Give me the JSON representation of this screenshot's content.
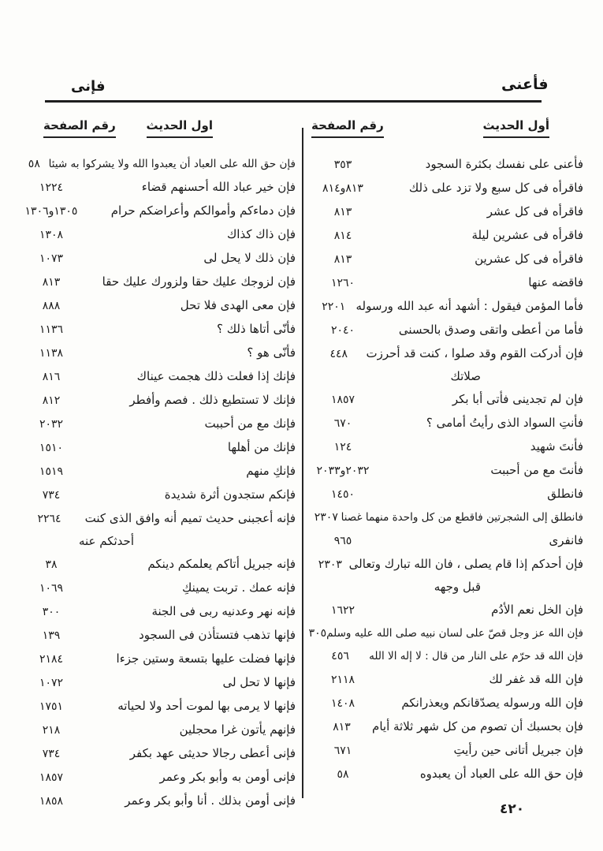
{
  "page": {
    "running_head_right": "فأعنى",
    "running_head_left": "فإنى",
    "page_number": "٤٢٠"
  },
  "columns": {
    "right": {
      "header_hadith": "أول الحديث",
      "header_page": "رقم الصفحة",
      "entries": [
        {
          "text": "فأعنى على نفسك بكثرة السجود",
          "page": "٣٥٣"
        },
        {
          "text": "فاقرأه فى كل سبع ولا تزد على ذلك",
          "page": "٨١٣و٨١٤"
        },
        {
          "text": "فاقرأه فى كل عشر",
          "page": "٨١٣"
        },
        {
          "text": "فاقرأه فى عشرين ليلة",
          "page": "٨١٤"
        },
        {
          "text": "فاقرأه فى كل عشرين",
          "page": "٨١٣"
        },
        {
          "text": "فاقضه عنها",
          "page": "١٢٦٠"
        },
        {
          "text": "فأما المؤمن فيقول : أشهد أنه عبد الله ورسوله",
          "page": "٢٢٠١"
        },
        {
          "text": "فأما من أعطى واتقى وصدق بالحسنى",
          "page": "٢٠٤٠"
        },
        {
          "text": "فإن أدركت القوم وقد صلوا ، كنت قد أحرزت",
          "line2": "صلاتك",
          "page": "٤٤٨"
        },
        {
          "text": "فإن لم تجدينى فأتى أبا بكر",
          "page": "١٨٥٧"
        },
        {
          "text": "فأنتِ السواد الذى رأيتُ أمامى ؟",
          "page": "٦٧٠"
        },
        {
          "text": "فأنتَ شهيد",
          "page": "١٢٤"
        },
        {
          "text": "فأنتَ مع من أحببت",
          "page": "٢٠٣٢و٢٠٣٣"
        },
        {
          "text": "فانطلق",
          "page": "١٤٥٠"
        },
        {
          "text": "فانطلق إلى الشجرتين فاقطع من كل واحدة منهما غصنا",
          "page": "٢٣٠٧",
          "small": true
        },
        {
          "text": "فانفرى",
          "page": "٩٦٥"
        },
        {
          "text": "فإن أحدكم إذا قام يصلى ، فان الله تبارك وتعالى",
          "line2": "قبل وجهه",
          "page": "٢٣٠٣"
        },
        {
          "text": "فإن الخل نعم الأدُم",
          "page": "١٦٢٢"
        },
        {
          "text": "فإن الله عز وجل قصّ على لسان نبيه صلى الله عليه وسلم",
          "page": "٣٠٥",
          "small": true
        },
        {
          "text": "فإن الله قد حرّم على النار من قال : لا إله الا الله",
          "page": "٤٥٦",
          "small": true
        },
        {
          "text": "فإن الله قد غفر لك",
          "page": "٢١١٨"
        },
        {
          "text": "فإن الله ورسوله يصدّقانكم ويعذرانكم",
          "page": "١٤٠٨"
        },
        {
          "text": "فإن بحسبك أن تصوم من كل شهر ثلاثة أيام",
          "page": "٨١٣"
        },
        {
          "text": "فإن جبريل أتانى حين رأيتِ",
          "page": "٦٧١"
        },
        {
          "text": "فإن حق الله على العباد أن يعبدوه",
          "page": "٥٨"
        }
      ]
    },
    "left": {
      "header_hadith": "اول الحديث",
      "header_page": "رقم الصفحة",
      "entries": [
        {
          "text": "فإن حق الله على العباد أن يعبدوا الله ولا يشركوا به شيئا",
          "page": "٥٨",
          "small": true
        },
        {
          "text": "فإن خير عباد الله أحسنهم قضاء",
          "page": "١٢٢٤"
        },
        {
          "text": "فإن دماءكم وأموالكم وأعراضكم حرام",
          "page": "١٣٠٥و١٣٠٦"
        },
        {
          "text": "فإن ذاك كذاك",
          "page": "١٣٠٨"
        },
        {
          "text": "فإن ذلك لا يحل لى",
          "page": "١٠٧٣"
        },
        {
          "text": "فإن لزوجك عليك حقا ولزورك عليك حقا",
          "page": "٨١٣"
        },
        {
          "text": "فإن معى الهدى فلا تحل",
          "page": "٨٨٨"
        },
        {
          "text": "فأنّى أتاها ذلك ؟",
          "page": "١١٣٦"
        },
        {
          "text": "فأنّى هو ؟",
          "page": "١١٣٨"
        },
        {
          "text": "فإنك إذا فعلت ذلك هجمت عيناك",
          "page": "٨١٦"
        },
        {
          "text": "فإنك لا تستطيع ذلك . فصم وأفطر",
          "page": "٨١٢"
        },
        {
          "text": "فإنك مع من أحببت",
          "page": "٢٠٣٢"
        },
        {
          "text": "فإنك من أهلها",
          "page": "١٥١٠"
        },
        {
          "text": "فإنكِ منهم",
          "page": "١٥١٩"
        },
        {
          "text": "فإنكم ستجدون أثرة شديدة",
          "page": "٧٣٤"
        },
        {
          "text": "فإنه أعجبنى حديث تميم أنه وافق الذى كنت",
          "line2": "أحدثكم عنه",
          "page": "٢٢٦٤"
        },
        {
          "text": "فإنه جبريل أتاكم يعلمكم دينكم",
          "page": "٣٨"
        },
        {
          "text": "فإنه عمك . تربت يمينكِ",
          "page": "١٠٦٩"
        },
        {
          "text": "فإنه نهر وعدنيه ربى فى الجنة",
          "page": "٣٠٠"
        },
        {
          "text": "فإنها تذهب فتستأذن فى السجود",
          "page": "١٣٩"
        },
        {
          "text": "فإنها فضلت عليها بتسعة وستين جزءا",
          "page": "٢١٨٤"
        },
        {
          "text": "فإنها لا تحل لى",
          "page": "١٠٧٢"
        },
        {
          "text": "فإنها لا يرمى بها لموت أحد ولا لحياته",
          "page": "١٧٥١"
        },
        {
          "text": "فإنهم يأتون غرا محجلين",
          "page": "٢١٨"
        },
        {
          "text": "فإنى أعطى رجالا حديثى عهد بكفر",
          "page": "٧٣٤"
        },
        {
          "text": "فإنى أومن به وأبو بكر وعمر",
          "page": "١٨٥٧"
        },
        {
          "text": "فإنى أومن بذلك . أنا وأبو بكر وعمر",
          "page": "١٨٥٨"
        }
      ]
    }
  }
}
